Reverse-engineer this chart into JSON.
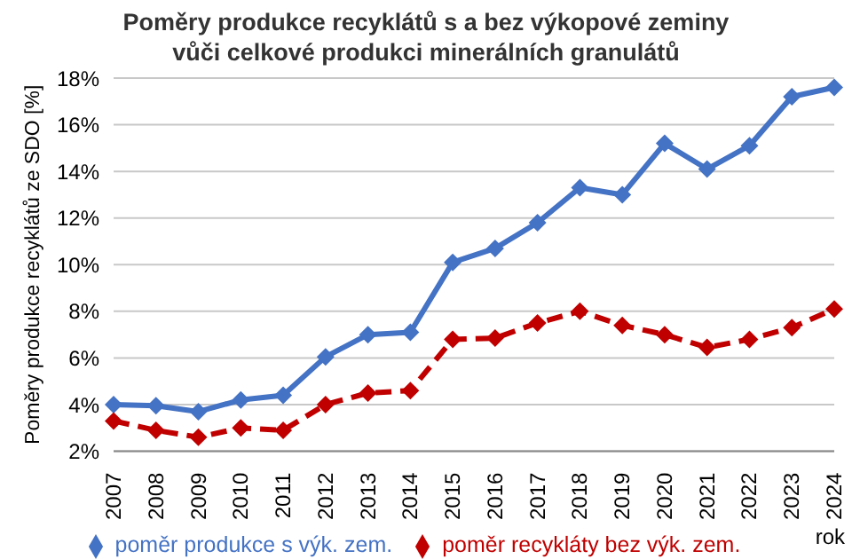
{
  "chart_data": {
    "type": "line",
    "title": "Poměry produkce recyklátů s a bez výkopové zeminy vůči celkové produkci minerálních granulátů",
    "ylabel": "Poměry produkce recyklátů ze SDO [%]",
    "xlabel": "rok",
    "categories": [
      "2007",
      "2008",
      "2009",
      "2010",
      "2011",
      "2012",
      "2013",
      "2014",
      "2015",
      "2016",
      "2017",
      "2018",
      "2019",
      "2020",
      "2021",
      "2022",
      "2023",
      "2024"
    ],
    "series": [
      {
        "name": "poměr produkce s výk. zem.",
        "color": "#4472c4",
        "line_style": "solid",
        "values": [
          4.0,
          3.95,
          3.7,
          4.2,
          4.4,
          6.05,
          7.0,
          7.1,
          10.1,
          10.7,
          11.8,
          13.3,
          13.0,
          15.2,
          14.1,
          15.1,
          17.2,
          17.6
        ]
      },
      {
        "name": "poměr recykláty bez výk. zem.",
        "color": "#c00000",
        "line_style": "dashed",
        "values": [
          3.3,
          2.9,
          2.6,
          3.0,
          2.9,
          4.0,
          4.5,
          4.6,
          6.8,
          6.85,
          7.5,
          8.0,
          7.4,
          7.0,
          6.45,
          6.8,
          7.3,
          8.1
        ]
      }
    ],
    "ylim": [
      2,
      18
    ],
    "yticks": [
      {
        "value": 2,
        "label": "2%"
      },
      {
        "value": 4,
        "label": "4%"
      },
      {
        "value": 6,
        "label": "6%"
      },
      {
        "value": 8,
        "label": "8%"
      },
      {
        "value": 10,
        "label": "10%"
      },
      {
        "value": 12,
        "label": "12%"
      },
      {
        "value": 14,
        "label": "14%"
      },
      {
        "value": 16,
        "label": "16%"
      },
      {
        "value": 18,
        "label": "18%"
      }
    ],
    "grid": "y",
    "legend": "bottom",
    "marker": "diamond"
  }
}
